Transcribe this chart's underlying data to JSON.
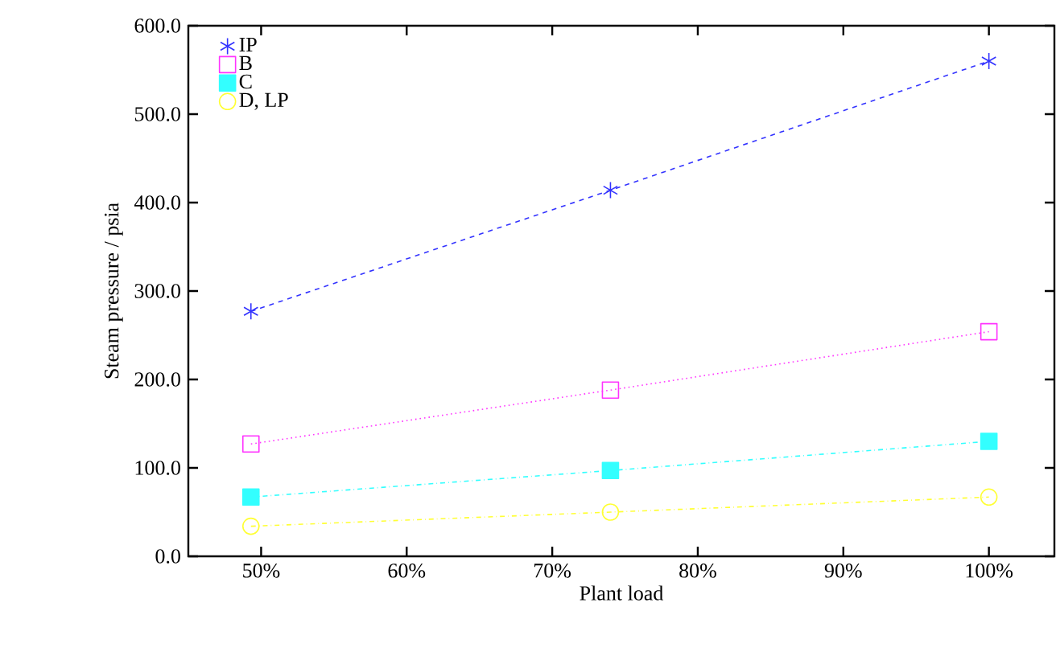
{
  "chart_data": {
    "type": "line",
    "xlabel": "Plant load",
    "ylabel": "Steam pressure / psia",
    "x": [
      49.3,
      74,
      100
    ],
    "series": [
      {
        "name": "IP",
        "color": "#3333ff",
        "marker": "cross",
        "line_style": "dashed",
        "values": [
          277,
          414,
          560
        ]
      },
      {
        "name": "B",
        "color": "#ff33ff",
        "marker": "square",
        "line_style": "dotted",
        "values": [
          127,
          188,
          254
        ]
      },
      {
        "name": "C",
        "color": "#33ffff",
        "marker": "square",
        "line_style": "dashdot",
        "values": [
          67,
          97,
          130
        ]
      },
      {
        "name": "D, LP",
        "color": "#ffff33",
        "marker": "circle",
        "line_style": "dashdot",
        "values": [
          34,
          50,
          67
        ]
      }
    ],
    "xlim": [
      45,
      104.5
    ],
    "ylim": [
      0,
      600
    ],
    "xticks": [
      {
        "value": 50,
        "label": "50%"
      },
      {
        "value": 60,
        "label": "60%"
      },
      {
        "value": 70,
        "label": "70%"
      },
      {
        "value": 80,
        "label": "80%"
      },
      {
        "value": 90,
        "label": "90%"
      },
      {
        "value": 100,
        "label": "100%"
      }
    ],
    "yticks": [
      {
        "value": 0,
        "label": "0.0"
      },
      {
        "value": 100,
        "label": "100.0"
      },
      {
        "value": 200,
        "label": "200.0"
      },
      {
        "value": 300,
        "label": "300.0"
      },
      {
        "value": 400,
        "label": "400.0"
      },
      {
        "value": 500,
        "label": "500.0"
      },
      {
        "value": 600,
        "label": "600.0"
      }
    ],
    "grid": false,
    "legend": "top left"
  }
}
